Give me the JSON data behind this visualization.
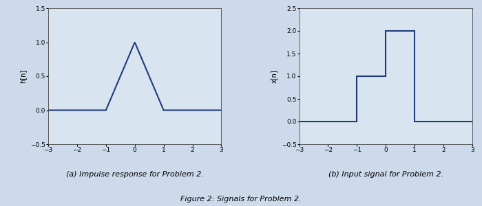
{
  "plot_a": {
    "x": [
      -3,
      -1,
      0,
      1,
      3
    ],
    "y": [
      0,
      0,
      1,
      0,
      0
    ],
    "xlim": [
      -3,
      3
    ],
    "ylim": [
      -0.5,
      1.5
    ],
    "xticks": [
      -3,
      -2,
      -1,
      0,
      1,
      2,
      3
    ],
    "yticks": [
      -0.5,
      0,
      0.5,
      1,
      1.5
    ],
    "ylabel": "h[n]",
    "caption": "(a) Impulse response for Problem 2."
  },
  "plot_b": {
    "x": [
      -3,
      -2,
      -2,
      -1,
      -1,
      0,
      0,
      1,
      1,
      3
    ],
    "y": [
      0,
      0,
      0,
      0,
      1,
      1,
      2,
      2,
      0,
      0
    ],
    "xlim": [
      -3,
      3
    ],
    "ylim": [
      -0.5,
      2.5
    ],
    "xticks": [
      -3,
      -2,
      -1,
      0,
      1,
      2,
      3
    ],
    "yticks": [
      -0.5,
      0,
      0.5,
      1,
      1.5,
      2,
      2.5
    ],
    "ylabel": "x[n]",
    "caption": "(b) Input signal for Problem 2."
  },
  "figure_caption": "Figure 2: Signals for Problem 2.",
  "line_color": "#1e3a7a",
  "line_width": 1.5,
  "plot_bg": "#d8e4f0",
  "fig_bg": "#ccdaec",
  "font_size_caption": 8,
  "font_size_label": 7,
  "font_size_tick": 6.5,
  "font_size_fig_caption": 8
}
